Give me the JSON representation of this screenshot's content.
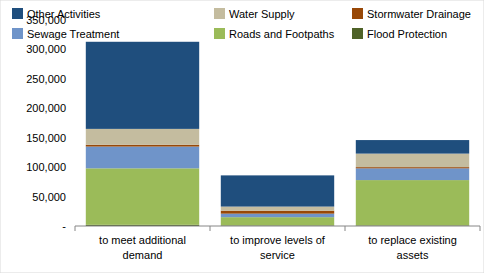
{
  "chart_data": {
    "type": "bar",
    "stacked": true,
    "legend": "top",
    "grid": false,
    "categories": [
      "to meet additional demand",
      "to improve levels of service",
      "to replace existing assets"
    ],
    "ylim": [
      0,
      350000
    ],
    "yticks": [
      {
        "value": 0,
        "label": "-"
      },
      {
        "value": 50000,
        "label": "50,000"
      },
      {
        "value": 100000,
        "label": "100,000"
      },
      {
        "value": 150000,
        "label": "150,000"
      },
      {
        "value": 200000,
        "label": "200,000"
      },
      {
        "value": 250000,
        "label": "250,000"
      },
      {
        "value": 300000,
        "label": "300,000"
      },
      {
        "value": 350000,
        "label": "350,000"
      }
    ],
    "series": [
      {
        "name": "Flood Protection",
        "color": "#4f6228",
        "values": [
          2000,
          1000,
          1000
        ]
      },
      {
        "name": "Roads and Footpaths",
        "color": "#9bbb59",
        "values": [
          96000,
          14000,
          77000
        ]
      },
      {
        "name": "Sewage Treatment",
        "color": "#6f94c9",
        "values": [
          37000,
          6000,
          20000
        ]
      },
      {
        "name": "Stormwater Drainage",
        "color": "#984807",
        "values": [
          3000,
          5000,
          2000
        ]
      },
      {
        "name": "Water Supply",
        "color": "#c4bc9f",
        "values": [
          27000,
          7000,
          23000
        ]
      },
      {
        "name": "Other Activities",
        "color": "#1f4e7d",
        "values": [
          148000,
          53000,
          23000
        ]
      }
    ]
  }
}
